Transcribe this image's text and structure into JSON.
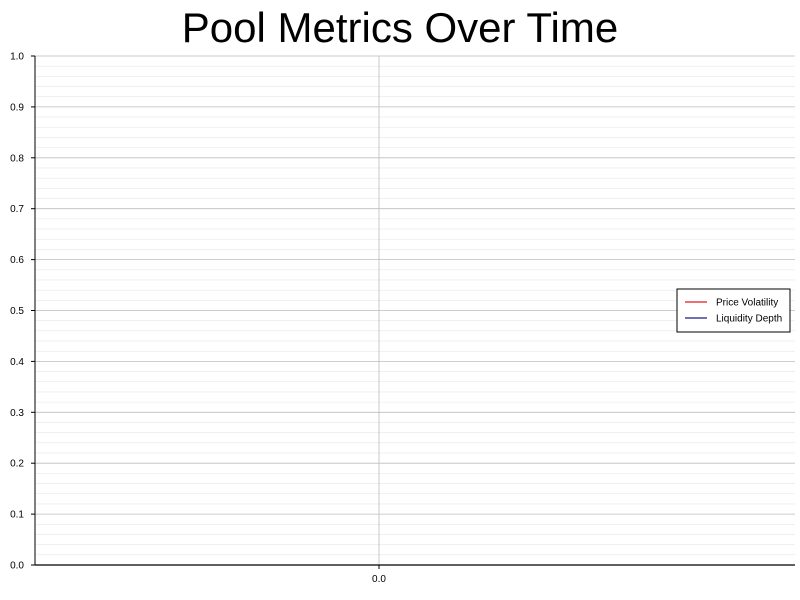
{
  "chart_data": {
    "type": "line",
    "title": "Pool Metrics Over Time",
    "xlabel": "",
    "ylabel": "",
    "x": [],
    "x_ticks": [
      "0.0"
    ],
    "y_ticks": [
      "0.0",
      "0.1",
      "0.2",
      "0.3",
      "0.4",
      "0.5",
      "0.6",
      "0.7",
      "0.8",
      "0.9",
      "1.0"
    ],
    "ylim": [
      0,
      1
    ],
    "grid": true,
    "legend_position": "right",
    "series": [
      {
        "name": "Price Volatility",
        "color": "#e41a1c",
        "values": []
      },
      {
        "name": "Liquidity Depth",
        "color": "#1a1a8c",
        "values": []
      }
    ]
  }
}
